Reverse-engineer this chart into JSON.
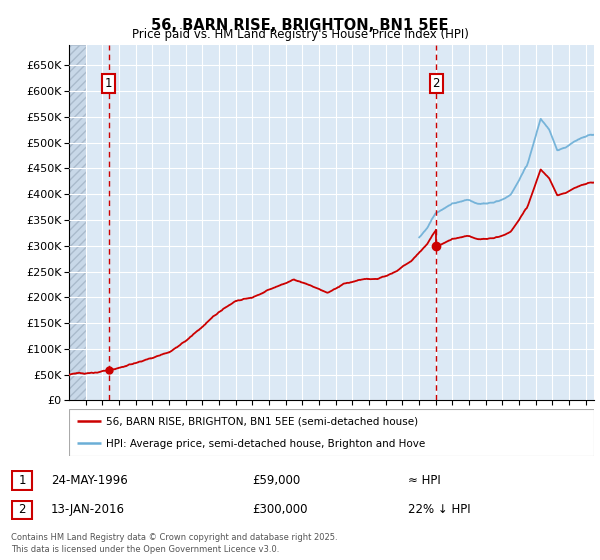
{
  "title": "56, BARN RISE, BRIGHTON, BN1 5EE",
  "subtitle": "Price paid vs. HM Land Registry's House Price Index (HPI)",
  "ylabel_ticks": [
    "£0",
    "£50K",
    "£100K",
    "£150K",
    "£200K",
    "£250K",
    "£300K",
    "£350K",
    "£400K",
    "£450K",
    "£500K",
    "£550K",
    "£600K",
    "£650K"
  ],
  "ytick_values": [
    0,
    50000,
    100000,
    150000,
    200000,
    250000,
    300000,
    350000,
    400000,
    450000,
    500000,
    550000,
    600000,
    650000
  ],
  "ylim": [
    0,
    690000
  ],
  "xlim_start": 1994.0,
  "xlim_end": 2025.5,
  "background_color": "#dce9f5",
  "grid_color": "#ffffff",
  "sale1_date": 1996.38,
  "sale1_price": 59000,
  "sale2_date": 2016.04,
  "sale2_price": 300000,
  "legend_line1": "56, BARN RISE, BRIGHTON, BN1 5EE (semi-detached house)",
  "legend_line2": "HPI: Average price, semi-detached house, Brighton and Hove",
  "note1_date": "24-MAY-1996",
  "note1_price": "£59,000",
  "note1_rel": "≈ HPI",
  "note2_date": "13-JAN-2016",
  "note2_price": "£300,000",
  "note2_rel": "22% ↓ HPI",
  "footer": "Contains HM Land Registry data © Crown copyright and database right 2025.\nThis data is licensed under the Open Government Licence v3.0.",
  "red_line_color": "#cc0000",
  "blue_line_color": "#6baed6",
  "vline_color": "#cc0000"
}
